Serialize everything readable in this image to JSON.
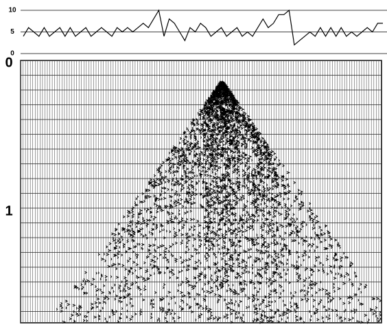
{
  "chart_data": [
    {
      "type": "line",
      "color": "#000000",
      "values": [
        4,
        6,
        5,
        4,
        6,
        4,
        5,
        6,
        4,
        6,
        4,
        5,
        6,
        4,
        5,
        6,
        5,
        4,
        6,
        5,
        6,
        5,
        6,
        7,
        6,
        8,
        10,
        4,
        8,
        7,
        5,
        3,
        6,
        5,
        7,
        6,
        4,
        5,
        6,
        4,
        5,
        6,
        4,
        5,
        4,
        6,
        8,
        6,
        7,
        9,
        9,
        10,
        2,
        3,
        4,
        5,
        4,
        6,
        4,
        6,
        4,
        6,
        4,
        5,
        4,
        5,
        6,
        5,
        7,
        7
      ],
      "ylim": [
        0,
        10
      ],
      "yticks": [
        0,
        5,
        10
      ],
      "grid": true
    },
    {
      "type": "seismic",
      "ylim": [
        0,
        1.75
      ],
      "yticks": [
        0,
        1
      ]
    }
  ]
}
